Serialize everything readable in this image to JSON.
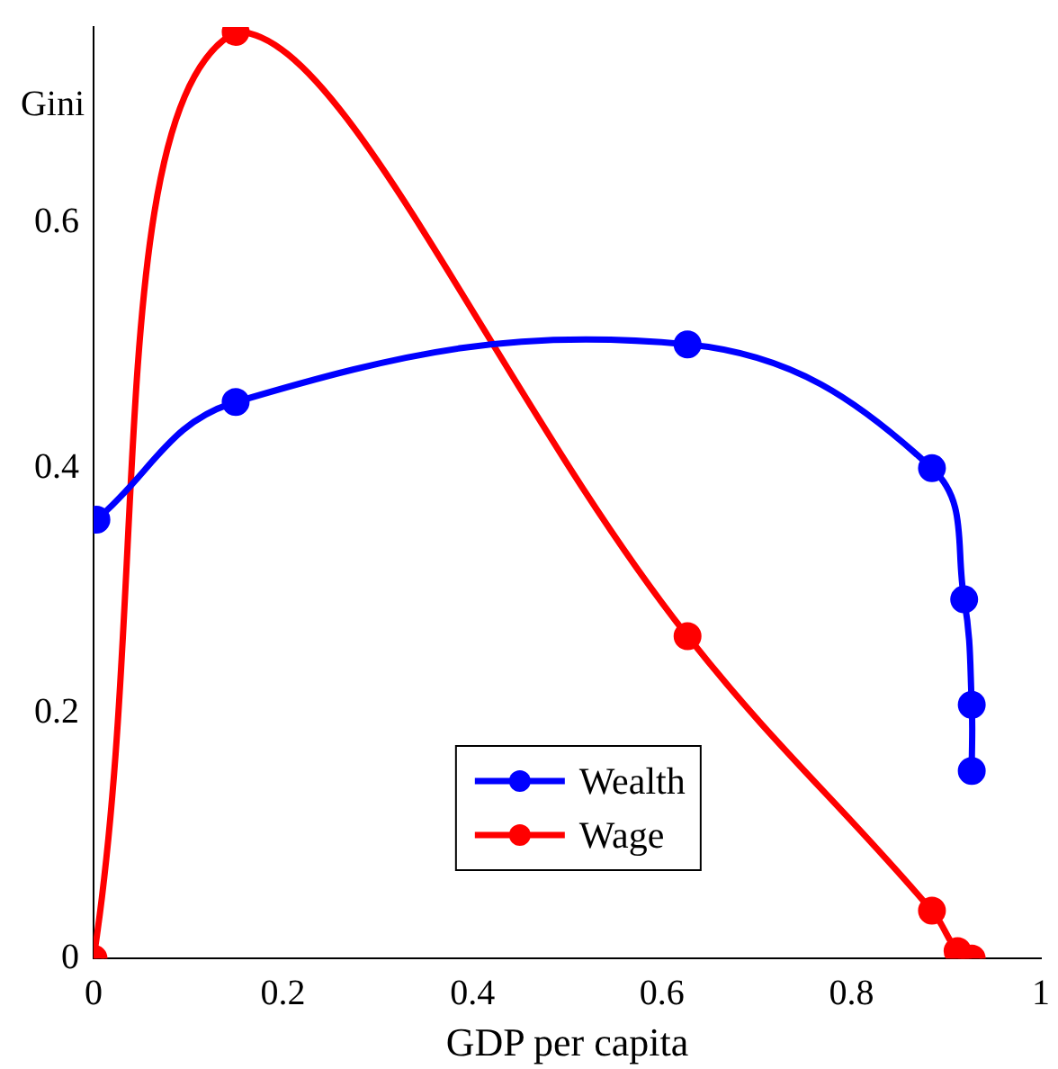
{
  "chart_data": {
    "type": "line",
    "xlabel": "GDP per capita",
    "ylabel": "Gini",
    "xlim": [
      0,
      1
    ],
    "ylim": [
      0,
      0.76
    ],
    "xticks": [
      0,
      0.2,
      0.4,
      0.6,
      0.8,
      1
    ],
    "yticks": [
      0,
      0.2,
      0.4,
      0.6
    ],
    "grid": false,
    "legend": "bottom",
    "marker": "circle",
    "series": [
      {
        "name": "Wealth",
        "color": "#0000ff",
        "x": [
          0.003,
          0.15,
          0.627,
          0.885,
          0.919,
          0.927,
          0.927
        ],
        "values": [
          0.358,
          0.454,
          0.501,
          0.4,
          0.293,
          0.207,
          0.153
        ]
      },
      {
        "name": "Wage",
        "color": "#ff0000",
        "x": [
          0,
          0.15,
          0.627,
          0.885,
          0.912,
          0.927
        ],
        "values": [
          0,
          0.756,
          0.263,
          0.039,
          0.006,
          0
        ]
      }
    ]
  }
}
